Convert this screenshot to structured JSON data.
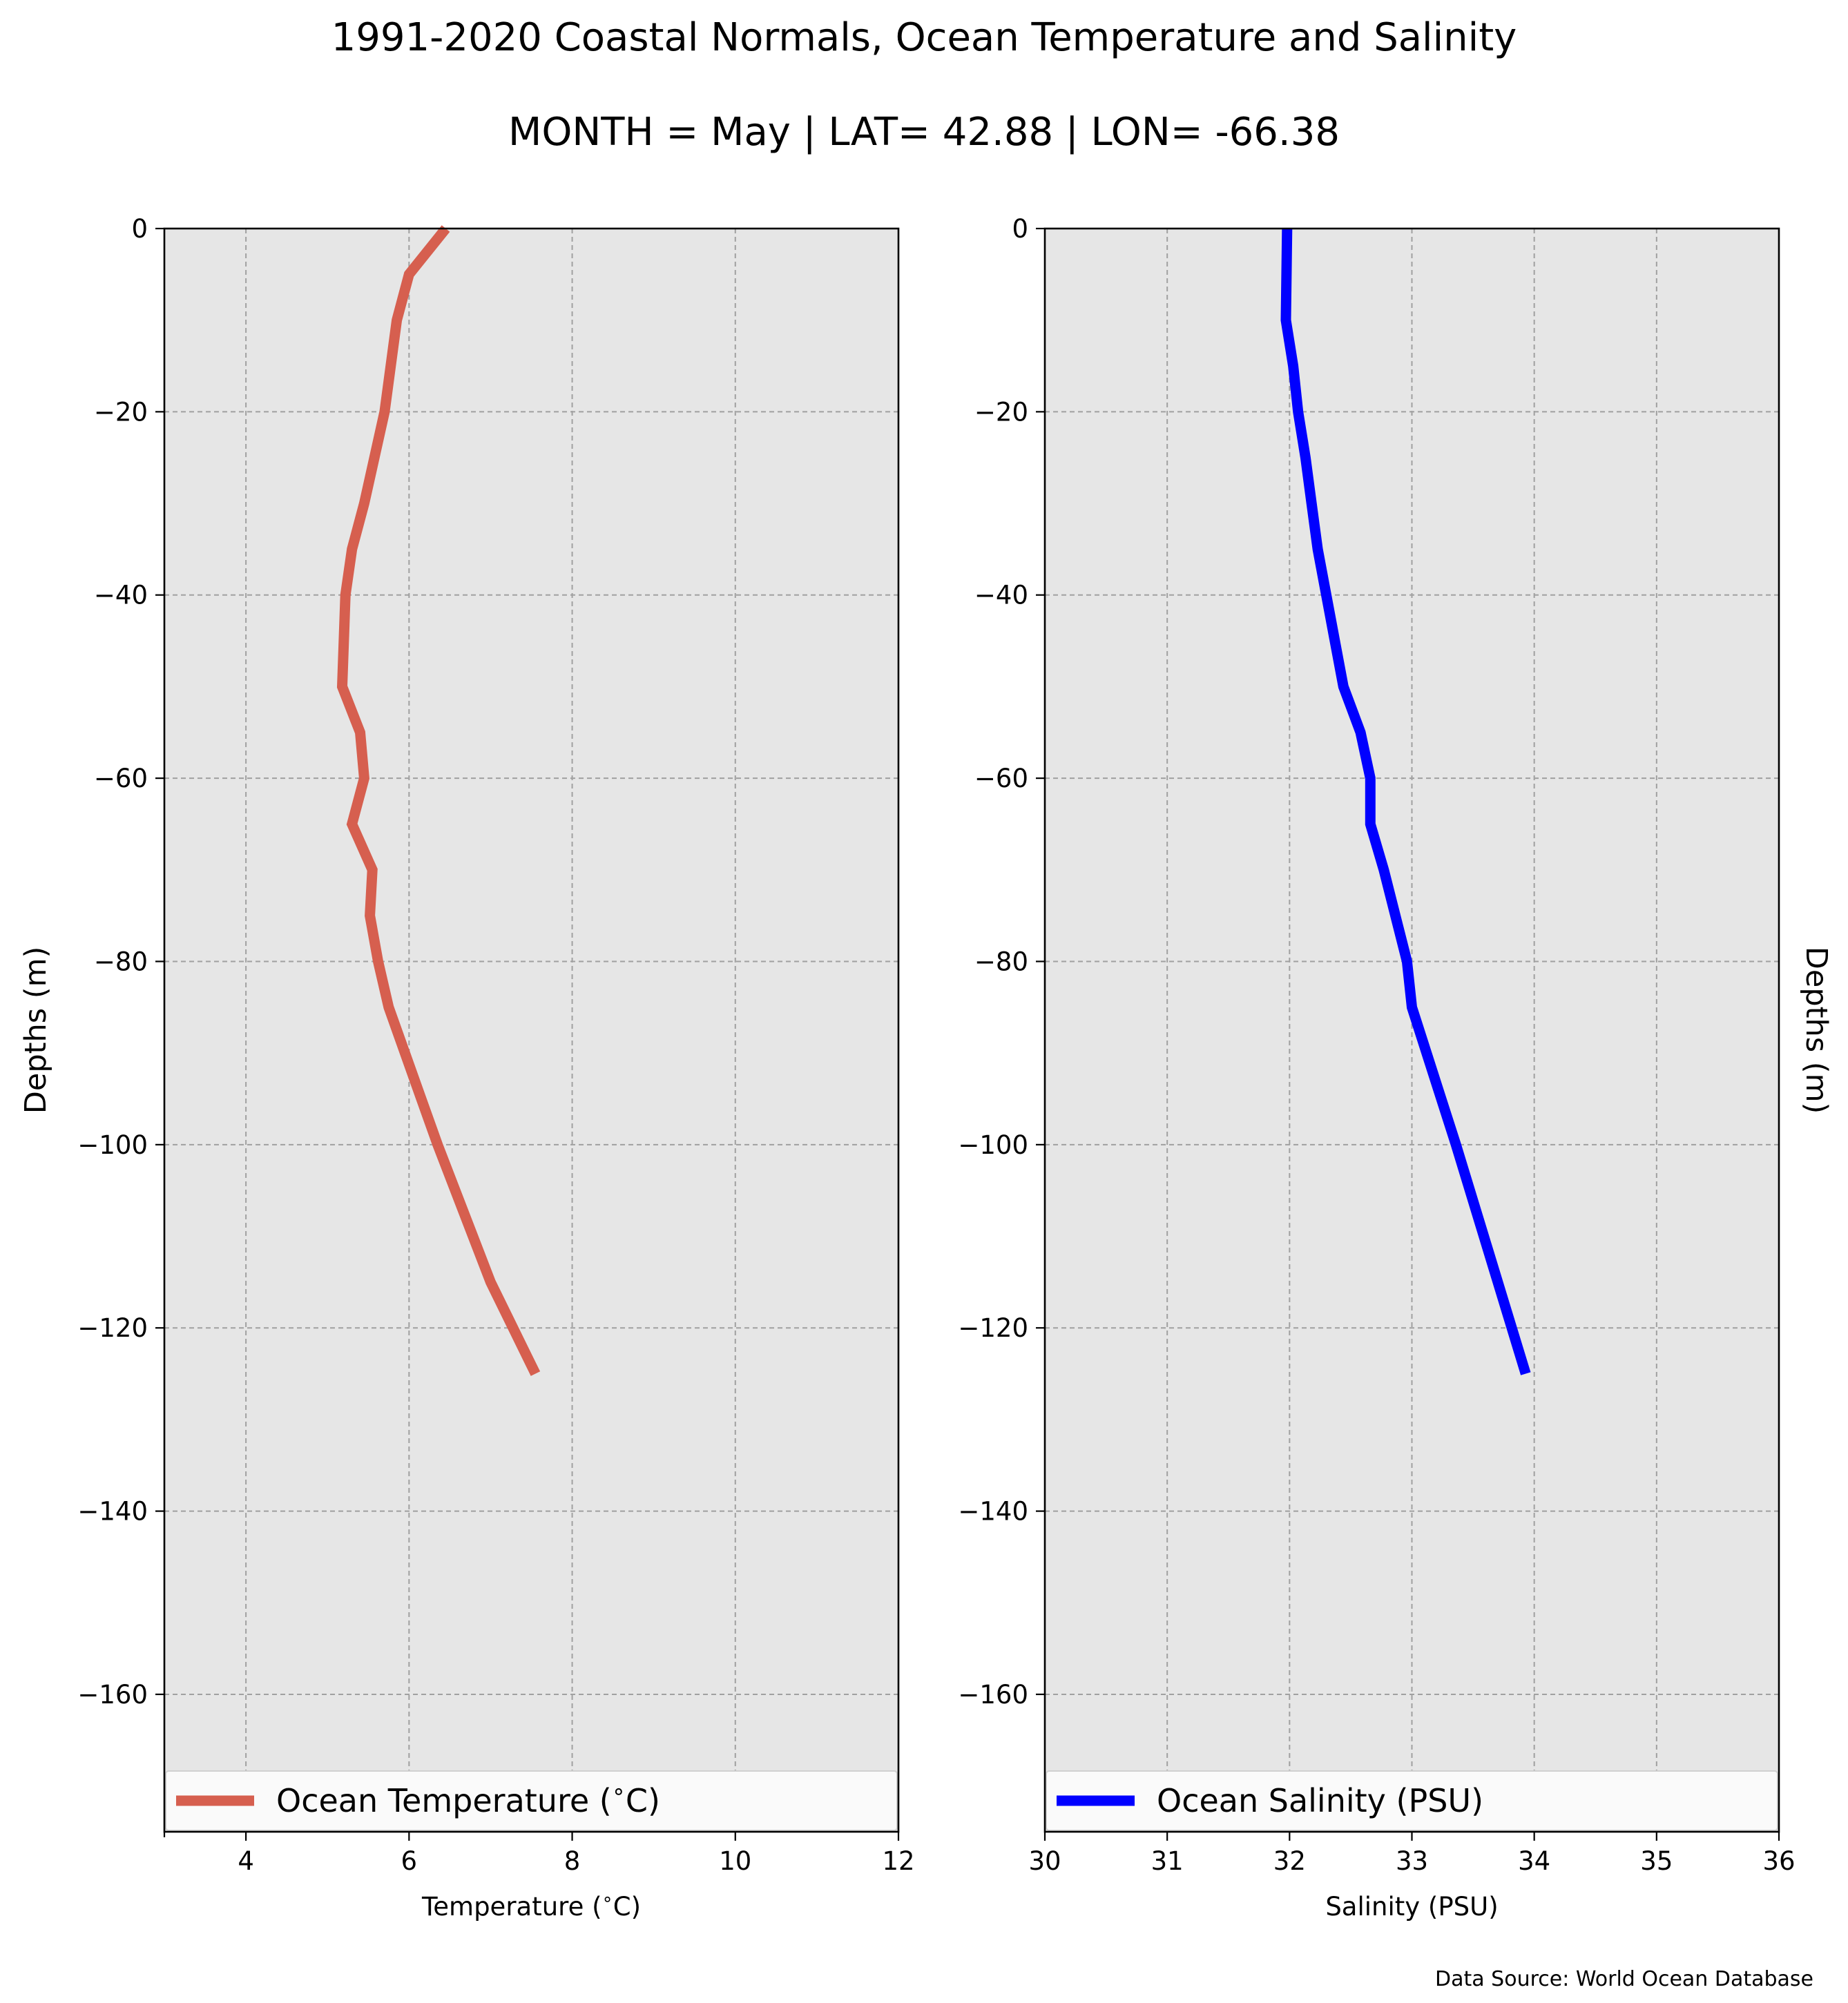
{
  "title": "1991-2020 Coastal Normals, Ocean Temperature and Salinity",
  "subtitle": "MONTH = May | LAT= 42.88 | LON= -66.38",
  "source": "Data Source: World Ocean Database",
  "chart_data": [
    {
      "type": "line",
      "xlabel": "Temperature ($^\\circ$C)",
      "ylabel": "Depths (m)",
      "xlim": [
        3,
        12
      ],
      "ylim": [
        -175,
        0
      ],
      "xticks": [
        4,
        6,
        8,
        10,
        12
      ],
      "yticks": [
        0,
        -20,
        -40,
        -60,
        -80,
        -100,
        -120,
        -140,
        -160
      ],
      "grid": true,
      "legend_position": "bottom",
      "background": "#e6e6e6",
      "series": [
        {
          "name": "Ocean Temperature ($^\\circ$C)",
          "color": "#d65f4f",
          "points": [
            {
              "x": 6.45,
              "y": 0
            },
            {
              "x": 6.0,
              "y": -5
            },
            {
              "x": 5.85,
              "y": -10
            },
            {
              "x": 5.7,
              "y": -20
            },
            {
              "x": 5.45,
              "y": -30
            },
            {
              "x": 5.3,
              "y": -35
            },
            {
              "x": 5.22,
              "y": -40
            },
            {
              "x": 5.18,
              "y": -50
            },
            {
              "x": 5.4,
              "y": -55
            },
            {
              "x": 5.45,
              "y": -60
            },
            {
              "x": 5.3,
              "y": -65
            },
            {
              "x": 5.55,
              "y": -70
            },
            {
              "x": 5.52,
              "y": -75
            },
            {
              "x": 5.62,
              "y": -80
            },
            {
              "x": 5.75,
              "y": -85
            },
            {
              "x": 6.15,
              "y": -95
            },
            {
              "x": 6.35,
              "y": -100
            },
            {
              "x": 7.0,
              "y": -115
            },
            {
              "x": 7.55,
              "y": -125
            }
          ]
        }
      ]
    },
    {
      "type": "line",
      "xlabel": "Salinity (PSU)",
      "ylabel": "Depths (m)",
      "xlim": [
        30,
        36
      ],
      "ylim": [
        -175,
        0
      ],
      "xticks": [
        30,
        31,
        32,
        33,
        34,
        35,
        36
      ],
      "yticks": [
        0,
        -20,
        -40,
        -60,
        -80,
        -100,
        -120,
        -140,
        -160
      ],
      "grid": true,
      "legend_position": "bottom",
      "background": "#e6e6e6",
      "series": [
        {
          "name": "Ocean Salinity (PSU)",
          "color": "#0000ff",
          "points": [
            {
              "x": 31.98,
              "y": 0
            },
            {
              "x": 31.97,
              "y": -10
            },
            {
              "x": 32.03,
              "y": -15
            },
            {
              "x": 32.07,
              "y": -20
            },
            {
              "x": 32.13,
              "y": -25
            },
            {
              "x": 32.18,
              "y": -30
            },
            {
              "x": 32.23,
              "y": -35
            },
            {
              "x": 32.3,
              "y": -40
            },
            {
              "x": 32.37,
              "y": -45
            },
            {
              "x": 32.44,
              "y": -50
            },
            {
              "x": 32.58,
              "y": -55
            },
            {
              "x": 32.66,
              "y": -60
            },
            {
              "x": 32.66,
              "y": -65
            },
            {
              "x": 32.77,
              "y": -70
            },
            {
              "x": 32.96,
              "y": -80
            },
            {
              "x": 33.0,
              "y": -85
            },
            {
              "x": 33.24,
              "y": -95
            },
            {
              "x": 33.36,
              "y": -100
            },
            {
              "x": 33.93,
              "y": -125
            }
          ]
        }
      ]
    }
  ]
}
